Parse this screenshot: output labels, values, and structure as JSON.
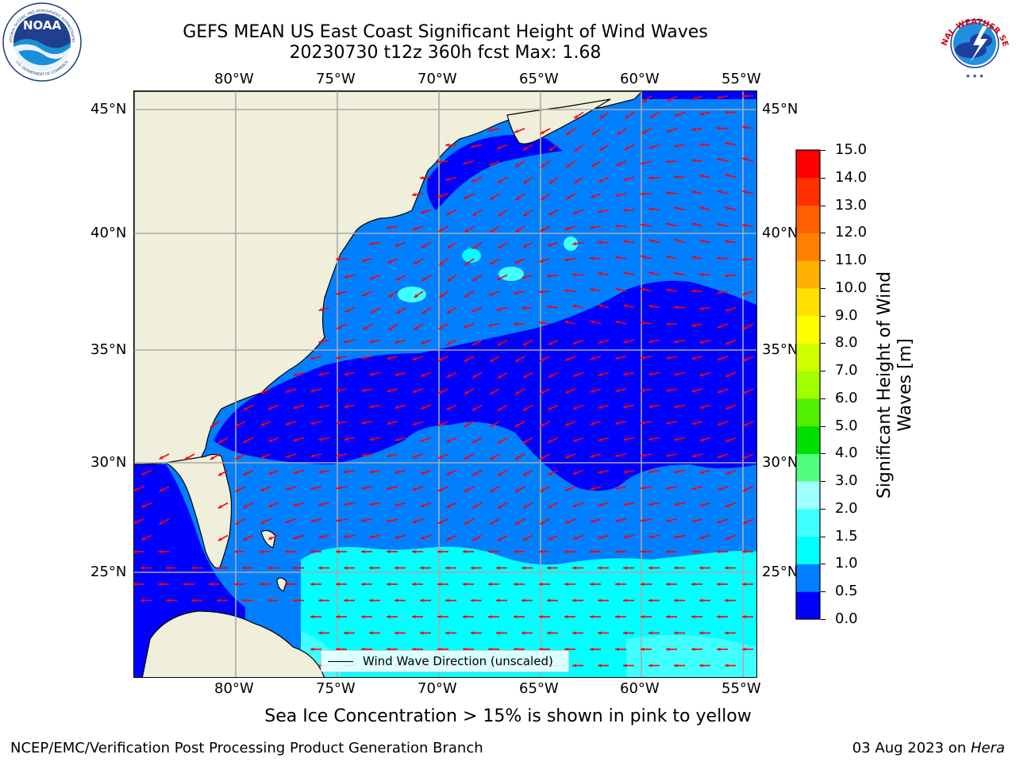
{
  "title_line1": "GEFS MEAN US East Coast Significant Height of Wind Waves",
  "title_line2": "20230730 t12z 360h fcst   Max: 1.68",
  "logos": {
    "left": {
      "icon": "noaa-logo-icon",
      "text_top": "NATIONAL OCEANIC AND ATMOSPHERIC ADMINISTRATION",
      "text_bottom": "U.S. DEPARTMENT OF COMMERCE",
      "center": "NOAA"
    },
    "right": {
      "icon": "nws-logo-icon",
      "text_top": "NATIONAL WEATHER SERVICE"
    }
  },
  "map": {
    "longitude_labels": [
      "80°W",
      "75°W",
      "70°W",
      "65°W",
      "60°W",
      "55°W"
    ],
    "latitude_labels": [
      "45°N",
      "40°N",
      "35°N",
      "30°N",
      "25°N"
    ],
    "lon_range": [
      -85,
      -54.2
    ],
    "lat_range": [
      20.4,
      45.8
    ],
    "grid": true,
    "land_color": "#efefdb",
    "arrow_color": "#ff0000",
    "legend_label": "Wind Wave Direction (unscaled)"
  },
  "colorbar": {
    "label_line1": "Significant Height of Wind",
    "label_line2": "Waves [m]",
    "ticks": [
      "0.0",
      "0.5",
      "1.0",
      "1.5",
      "2.0",
      "3.0",
      "4.0",
      "5.0",
      "6.0",
      "7.0",
      "8.0",
      "9.0",
      "10.0",
      "11.0",
      "12.0",
      "13.0",
      "14.0",
      "15.0"
    ],
    "colors": [
      "#0000ff",
      "#0080ff",
      "#00ffff",
      "#40ffff",
      "#a0ffff",
      "#50ff80",
      "#00e000",
      "#50f000",
      "#a0ff00",
      "#d0ff00",
      "#ffff00",
      "#ffe000",
      "#ffb000",
      "#ff8000",
      "#ff6000",
      "#ff3000",
      "#ff0000"
    ]
  },
  "subtitle": "Sea Ice Concentration > 15% is shown in pink to yellow",
  "footer_left": "NCEP/EMC/Verification Post Processing Product Generation Branch",
  "footer_date": "03 Aug 2023 on ",
  "footer_machine": "Hera"
}
